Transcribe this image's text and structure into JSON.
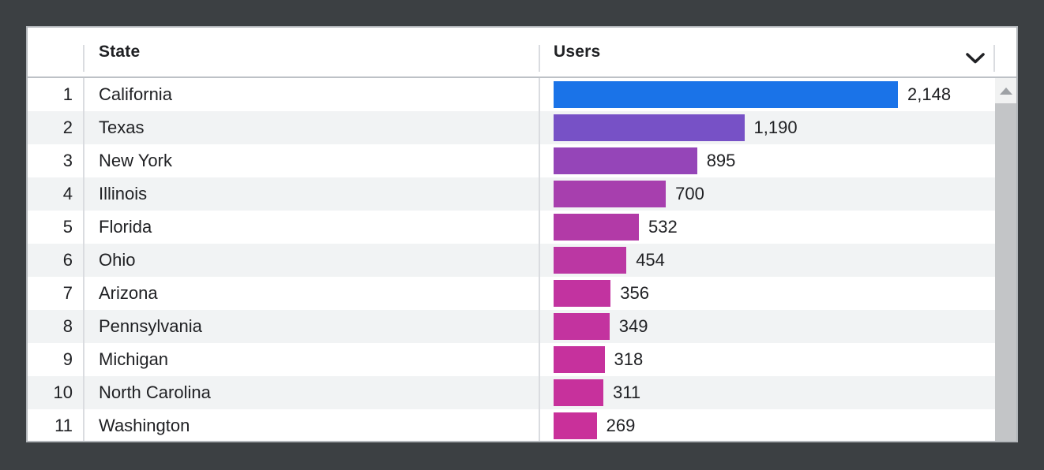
{
  "table": {
    "header": {
      "state_label": "State",
      "users_label": "Users"
    },
    "icons": {
      "header_collapse": "chevron-down",
      "scrollbar_up": "triangle-up"
    },
    "rows": [
      {
        "rank": "1",
        "state": "California",
        "users": "2,148",
        "value": 2148,
        "bar_color": "#1a73e8"
      },
      {
        "rank": "2",
        "state": "Texas",
        "users": "1,190",
        "value": 1190,
        "bar_color": "#7751c6"
      },
      {
        "rank": "3",
        "state": "New York",
        "users": "895",
        "value": 895,
        "bar_color": "#9545b8"
      },
      {
        "rank": "4",
        "state": "Illinois",
        "users": "700",
        "value": 700,
        "bar_color": "#a73fae"
      },
      {
        "rank": "5",
        "state": "Florida",
        "users": "532",
        "value": 532,
        "bar_color": "#b23aa7"
      },
      {
        "rank": "6",
        "state": "Ohio",
        "users": "454",
        "value": 454,
        "bar_color": "#bb37a3"
      },
      {
        "rank": "7",
        "state": "Arizona",
        "users": "356",
        "value": 356,
        "bar_color": "#c233a0"
      },
      {
        "rank": "8",
        "state": "Pennsylvania",
        "users": "349",
        "value": 349,
        "bar_color": "#c3339f"
      },
      {
        "rank": "9",
        "state": "Michigan",
        "users": "318",
        "value": 318,
        "bar_color": "#c6319d"
      },
      {
        "rank": "10",
        "state": "North Carolina",
        "users": "311",
        "value": 311,
        "bar_color": "#c7319c"
      },
      {
        "rank": "11",
        "state": "Washington",
        "users": "269",
        "value": 269,
        "bar_color": "#c9309a"
      }
    ]
  },
  "colors": {
    "frame_background": "#3c4043",
    "card_background": "#ffffff",
    "card_border": "#b2b6ba",
    "header_rule": "#bdc1c6",
    "column_divider": "#dadce0",
    "zebra_row": "#f1f3f4",
    "text": "#202124",
    "scrollbar_button": "#f1f2f2",
    "scrollbar_thumb": "#c3c5c7",
    "top_bar_blue": "#1a73e8",
    "bottom_bar_magenta": "#c9309a"
  },
  "chart_data": {
    "type": "bar",
    "orientation": "horizontal",
    "title": "",
    "xlabel": "Users",
    "ylabel": "State",
    "categories": [
      "California",
      "Texas",
      "New York",
      "Illinois",
      "Florida",
      "Ohio",
      "Arizona",
      "Pennsylvania",
      "Michigan",
      "North Carolina",
      "Washington"
    ],
    "values": [
      2148,
      1190,
      895,
      700,
      532,
      454,
      356,
      349,
      318,
      311,
      269
    ],
    "value_labels": [
      "2,148",
      "1,190",
      "895",
      "700",
      "532",
      "454",
      "356",
      "349",
      "318",
      "311",
      "269"
    ],
    "max_value": 2148,
    "xlim": [
      0,
      2148
    ],
    "grid": false,
    "legend": false,
    "bar_colors": [
      "#1a73e8",
      "#7751c6",
      "#9545b8",
      "#a73fae",
      "#b23aa7",
      "#bb37a3",
      "#c233a0",
      "#c3339f",
      "#c6319d",
      "#c7319c",
      "#c9309a"
    ]
  }
}
